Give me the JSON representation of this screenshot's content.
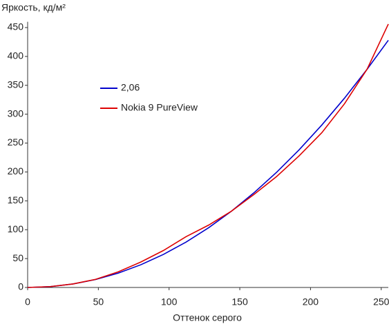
{
  "chart_data": {
    "type": "line",
    "ylabel": "Яркость, кд/м²",
    "xlabel": "Оттенок серого",
    "x": [
      0,
      16,
      32,
      48,
      64,
      80,
      96,
      112,
      128,
      144,
      160,
      176,
      192,
      208,
      224,
      240,
      255
    ],
    "series": [
      {
        "name": "2,06",
        "color": "#0000cc",
        "values": [
          0,
          1.4,
          6.0,
          13.7,
          24.8,
          39.3,
          57.2,
          78.6,
          103.5,
          131.9,
          163.9,
          199.4,
          238.5,
          281.3,
          327.7,
          377.8,
          428
        ]
      },
      {
        "name": "Nokia 9 PureView",
        "color": "#dd0000",
        "values": [
          0,
          1.5,
          6,
          14,
          27,
          44,
          64,
          88,
          108,
          132,
          161,
          192,
          228,
          268,
          318,
          378,
          456
        ]
      }
    ],
    "xlim": [
      0,
      255
    ],
    "ylim": [
      0,
      460
    ],
    "xticks": [
      0,
      50,
      100,
      150,
      200,
      250
    ],
    "yticks": [
      0,
      50,
      100,
      150,
      200,
      250,
      300,
      350,
      400,
      450
    ],
    "grid": false
  }
}
